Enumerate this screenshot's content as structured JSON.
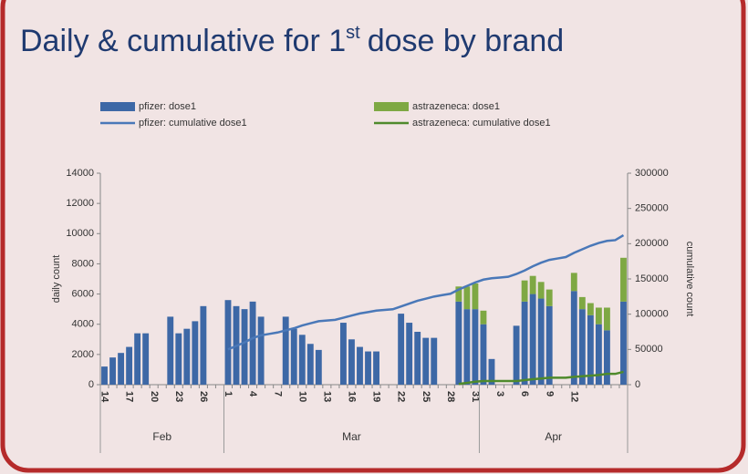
{
  "chart_data": {
    "type": "bar_line_dual",
    "title": "Daily & cumulative for 1",
    "title_superscript": "st",
    "title_end": "dose by brand",
    "categories": [
      "14",
      null,
      null,
      "17",
      null,
      null,
      "20",
      null,
      null,
      "23",
      null,
      null,
      "26",
      null,
      null,
      "1",
      null,
      null,
      "4",
      null,
      null,
      "7",
      null,
      null,
      "10",
      null,
      null,
      "13",
      null,
      null,
      "16",
      null,
      null,
      "19",
      null,
      null,
      "22",
      null,
      null,
      "25",
      null,
      null,
      "28",
      null,
      null,
      "31",
      null,
      null,
      "3",
      null,
      null,
      "6",
      null,
      null,
      "9",
      null,
      null,
      "12",
      null,
      null,
      null,
      null,
      null,
      null
    ],
    "groups": [
      {
        "label": "Feb",
        "count": 15
      },
      {
        "label": "Mar",
        "count": 31
      },
      {
        "label": "Apr",
        "count": 18
      }
    ],
    "ylabel": "daily count",
    "y2label": "cumulative count",
    "ylim": [
      0,
      14000
    ],
    "yticks": [
      0,
      2000,
      4000,
      6000,
      8000,
      10000,
      12000,
      14000
    ],
    "y2lim": [
      0,
      300000
    ],
    "y2ticks": [
      0,
      50000,
      100000,
      150000,
      200000,
      250000,
      300000
    ],
    "series": [
      {
        "name": "pfizer: dose1",
        "kind": "bar",
        "color": "#3d68a6",
        "values": [
          1200,
          1800,
          2100,
          2500,
          3400,
          3400,
          0,
          0,
          4500,
          3400,
          3700,
          4200,
          5200,
          0,
          0,
          5600,
          5200,
          5000,
          5500,
          4500,
          0,
          0,
          4500,
          3700,
          3300,
          2700,
          2300,
          0,
          0,
          4100,
          3000,
          2500,
          2200,
          2200,
          0,
          0,
          4700,
          4100,
          3500,
          3100,
          3100,
          0,
          0,
          5500,
          5000,
          5000,
          4000,
          1700,
          0,
          0,
          3900,
          5500,
          6000,
          5700,
          5200,
          0,
          0,
          6200,
          5000,
          4600,
          4000,
          3600,
          0,
          5500
        ]
      },
      {
        "name": "astrazeneca: dose1",
        "kind": "bar",
        "color": "#7ea843",
        "values": [
          0,
          0,
          0,
          0,
          0,
          0,
          0,
          0,
          0,
          0,
          0,
          0,
          0,
          0,
          0,
          0,
          0,
          0,
          0,
          0,
          0,
          0,
          0,
          0,
          0,
          0,
          0,
          0,
          0,
          0,
          0,
          0,
          0,
          0,
          0,
          0,
          0,
          0,
          0,
          0,
          0,
          0,
          0,
          1000,
          1500,
          1700,
          900,
          0,
          0,
          0,
          0,
          1400,
          1200,
          1100,
          1100,
          0,
          0,
          1200,
          800,
          800,
          1100,
          1500,
          0,
          2900
        ]
      },
      {
        "name": "pfizer: cumulative dose1",
        "kind": "line",
        "axis": "y2",
        "color": "#4a78b8",
        "values": [
          null,
          null,
          null,
          null,
          null,
          null,
          null,
          null,
          null,
          null,
          null,
          null,
          null,
          null,
          null,
          50000,
          55000,
          60000,
          66000,
          70000,
          72000,
          74000,
          77000,
          80000,
          84000,
          87000,
          90000,
          91000,
          92000,
          95000,
          98000,
          101000,
          103000,
          105000,
          106000,
          107000,
          111000,
          115000,
          119000,
          122000,
          125000,
          127000,
          129000,
          135000,
          140000,
          145000,
          149000,
          151000,
          152000,
          153000,
          157000,
          162000,
          168000,
          173000,
          177000,
          179000,
          181000,
          187000,
          192000,
          197000,
          201000,
          204000,
          205000,
          212000
        ]
      },
      {
        "name": "astrazeneca: cumulative dose1",
        "kind": "line",
        "axis": "y2",
        "color": "#4f8a2c",
        "values": [
          null,
          null,
          null,
          null,
          null,
          null,
          null,
          null,
          null,
          null,
          null,
          null,
          null,
          null,
          null,
          null,
          null,
          null,
          null,
          null,
          null,
          null,
          null,
          null,
          null,
          null,
          null,
          null,
          null,
          null,
          null,
          null,
          null,
          null,
          null,
          null,
          null,
          null,
          null,
          null,
          null,
          null,
          null,
          1000,
          2500,
          4200,
          5100,
          5100,
          5100,
          5100,
          5100,
          6500,
          7700,
          8800,
          9900,
          9900,
          9900,
          11100,
          11900,
          12700,
          13800,
          15300,
          15300,
          18200
        ]
      }
    ]
  }
}
